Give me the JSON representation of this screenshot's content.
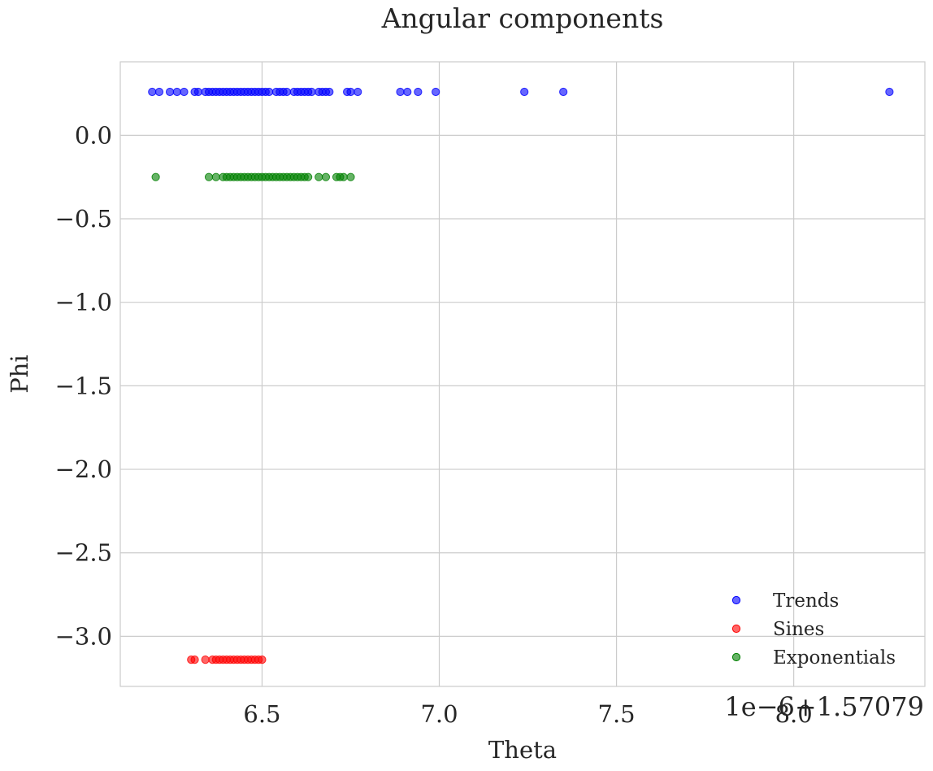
{
  "chart_data": {
    "type": "scatter",
    "title": "Angular components",
    "xlabel": "Theta",
    "ylabel": "Phi",
    "x_offset_label": "1e−6+1.57079",
    "xlim": [
      6.1,
      8.37
    ],
    "ylim": [
      -3.3,
      0.44
    ],
    "xticks": [
      6.5,
      7.0,
      7.5,
      8.0
    ],
    "xtick_labels": [
      "6.5",
      "7.0",
      "7.5",
      "8.0"
    ],
    "yticks": [
      0.0,
      -0.5,
      -1.0,
      -1.5,
      -2.0,
      -2.5,
      -3.0
    ],
    "ytick_labels": [
      "0.0",
      "−0.5",
      "−1.0",
      "−1.5",
      "−2.0",
      "−2.5",
      "−3.0"
    ],
    "grid": true,
    "legend_position": "lower-right",
    "series": [
      {
        "name": "Trends",
        "color": "#0000ff",
        "y": 0.26,
        "x": [
          6.19,
          6.21,
          6.24,
          6.26,
          6.28,
          6.31,
          6.32,
          6.34,
          6.35,
          6.36,
          6.37,
          6.38,
          6.39,
          6.4,
          6.41,
          6.42,
          6.43,
          6.44,
          6.45,
          6.46,
          6.47,
          6.48,
          6.49,
          6.5,
          6.51,
          6.52,
          6.54,
          6.55,
          6.56,
          6.57,
          6.59,
          6.6,
          6.61,
          6.62,
          6.63,
          6.64,
          6.66,
          6.67,
          6.68,
          6.69,
          6.74,
          6.75,
          6.77,
          6.89,
          6.91,
          6.94,
          6.99,
          7.24,
          7.35,
          8.27
        ]
      },
      {
        "name": "Sines",
        "color": "#ff0000",
        "y": -3.14,
        "x": [
          6.3,
          6.31,
          6.34,
          6.36,
          6.37,
          6.38,
          6.39,
          6.4,
          6.41,
          6.42,
          6.43,
          6.44,
          6.45,
          6.46,
          6.47,
          6.48,
          6.49,
          6.5
        ]
      },
      {
        "name": "Exponentials",
        "color": "#008000",
        "y": -0.25,
        "x": [
          6.2,
          6.35,
          6.37,
          6.39,
          6.4,
          6.41,
          6.42,
          6.43,
          6.44,
          6.45,
          6.46,
          6.47,
          6.48,
          6.49,
          6.5,
          6.51,
          6.52,
          6.53,
          6.54,
          6.55,
          6.56,
          6.57,
          6.58,
          6.59,
          6.6,
          6.61,
          6.62,
          6.63,
          6.66,
          6.68,
          6.71,
          6.72,
          6.73,
          6.75
        ]
      }
    ]
  }
}
